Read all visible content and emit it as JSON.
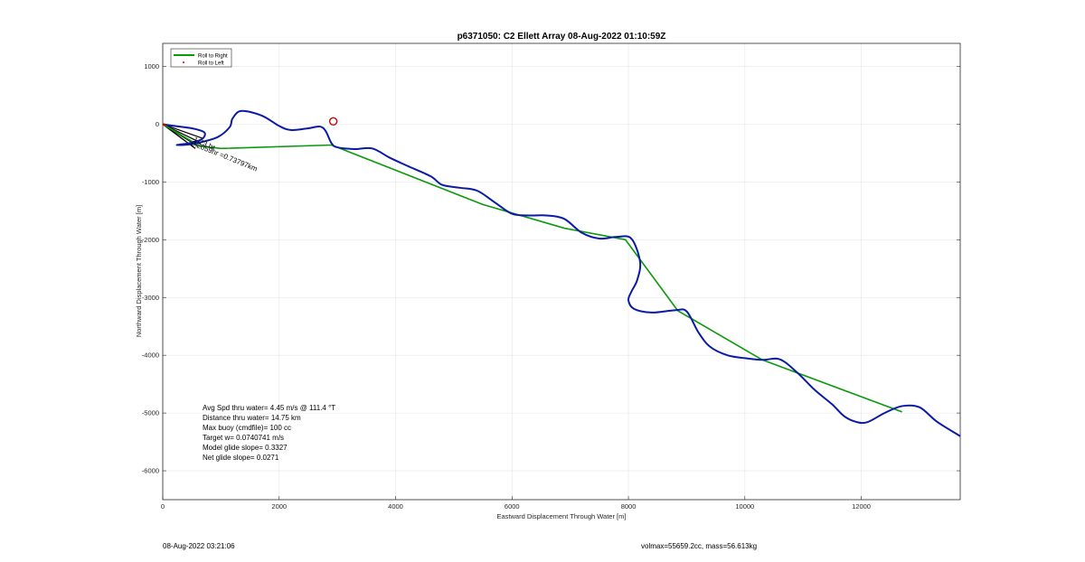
{
  "chart_data": {
    "type": "line",
    "title": "p6371050: C2 Ellett Array 08-Aug-2022 01:10:59Z",
    "xlabel": "Eastward Displacement Through Water [m]",
    "ylabel": "Northward Displacement Through Water [m]",
    "xlim": [
      0,
      13700
    ],
    "ylim": [
      -6500,
      1400
    ],
    "xticks": [
      0,
      2000,
      4000,
      6000,
      8000,
      10000,
      12000
    ],
    "yticks": [
      1000,
      0,
      -1000,
      -2000,
      -3000,
      -4000,
      -5000,
      -6000
    ],
    "grid": true,
    "legend": {
      "location": "top-left",
      "entries": [
        {
          "label": "Roll to Right",
          "color": "#0a9a0a",
          "marker": "line"
        },
        {
          "label": "Roll to Left",
          "color": "#cc0000",
          "marker": "dot"
        }
      ]
    },
    "series": [
      {
        "name": "Roll to Right",
        "color": "#0a9a0a",
        "x": [
          0,
          640,
          1000,
          2900,
          5500,
          6900,
          7950,
          8850,
          10300,
          12700
        ],
        "y": [
          0,
          -380,
          -420,
          -360,
          -1390,
          -1800,
          -2000,
          -3230,
          -4080,
          -4980
        ]
      },
      {
        "color": "#0a1aa6",
        "x": [
          0,
          200,
          500,
          700,
          720,
          650,
          450,
          300,
          250,
          450,
          700,
          950,
          1150,
          1200,
          1350,
          1700,
          2000,
          2200,
          2500,
          2700,
          2800,
          2900,
          3000,
          3300,
          3600,
          3900,
          4200,
          4600,
          4800,
          5100,
          5400,
          5700,
          6000,
          6300,
          6600,
          6900,
          7200,
          7500,
          7800,
          8050,
          8200,
          8150,
          8050,
          8000,
          8100,
          8400,
          8800,
          9000,
          9200,
          9400,
          9700,
          10000,
          10300,
          10600,
          10900,
          11200,
          11500,
          11700,
          11900,
          12100,
          12400,
          12700,
          13000,
          13300,
          13700
        ],
        "y": [
          0,
          -30,
          -70,
          -130,
          -200,
          -270,
          -330,
          -350,
          -360,
          -350,
          -300,
          -220,
          -50,
          100,
          230,
          150,
          -30,
          -100,
          -70,
          -40,
          -120,
          -330,
          -400,
          -430,
          -420,
          -580,
          -720,
          -900,
          -1050,
          -1100,
          -1150,
          -1350,
          -1550,
          -1580,
          -1580,
          -1640,
          -1880,
          -1980,
          -1950,
          -1980,
          -2380,
          -2700,
          -2900,
          -3050,
          -3200,
          -3260,
          -3220,
          -3240,
          -3600,
          -3850,
          -4000,
          -4050,
          -4080,
          -4070,
          -4300,
          -4600,
          -4850,
          -5050,
          -5150,
          -5160,
          -5000,
          -4880,
          -4900,
          -5150,
          -5400
        ]
      },
      {
        "name": "Roll to Left",
        "color": "#cc0000",
        "x": [
          20,
          40
        ],
        "y": [
          -5,
          -10
        ]
      }
    ],
    "annotations": [
      {
        "text": "0.2059hr =0.73797km",
        "x": 480,
        "y": -360
      },
      {
        "text": "1.23 hr",
        "x": 520,
        "y": -300
      }
    ],
    "marker_point": {
      "x": 2930,
      "y": 50,
      "color": "#cc0000"
    },
    "stats": [
      "Avg Spd thru water=  4.45 m/s @ 111.4 °T",
      "Distance thru water= 14.75 km",
      "Max buoy (cmdfile)= 100 cc",
      "Target w= 0.0740741 m/s",
      "Model glide slope= 0.3327",
      "Net glide slope= 0.0271"
    ]
  },
  "footer": {
    "timestamp": "08-Aug-2022 03:21:06",
    "mass_info": "volmax=55659.2cc, mass=56.613kg"
  }
}
